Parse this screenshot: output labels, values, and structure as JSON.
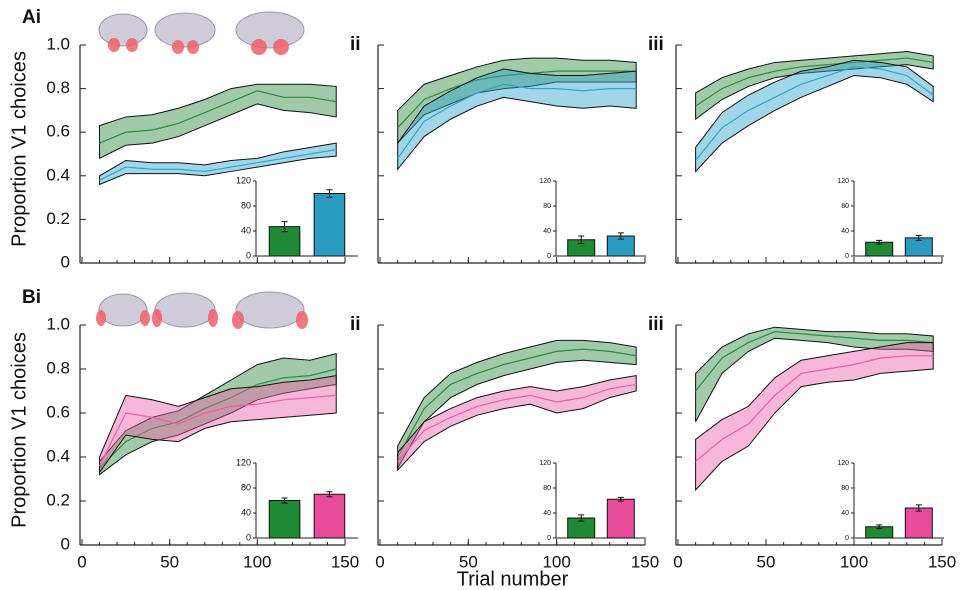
{
  "chart_data": [
    {
      "type": "line",
      "label": "Ai",
      "ylabel": "Proportion V1 choices",
      "xlim": [
        0,
        150
      ],
      "xticks": [
        0,
        50,
        100,
        150
      ],
      "xtick_labels": false,
      "ylim": [
        0,
        1
      ],
      "yticks": [
        0,
        0.2,
        0.4,
        0.6,
        0.8,
        {
          "value": 1,
          "label": "1.0"
        }
      ],
      "ytick_labels": true,
      "x": [
        10,
        25,
        40,
        55,
        70,
        85,
        100,
        115,
        130,
        145
      ],
      "series": [
        {
          "color": "#2d8a3f",
          "values": [
            0.55,
            0.6,
            0.61,
            0.64,
            0.69,
            0.74,
            0.79,
            0.76,
            0.76,
            0.74
          ],
          "lower": [
            0.48,
            0.54,
            0.55,
            0.58,
            0.63,
            0.68,
            0.73,
            0.7,
            0.69,
            0.67
          ],
          "upper": [
            0.63,
            0.67,
            0.68,
            0.71,
            0.75,
            0.8,
            0.82,
            0.82,
            0.82,
            0.81
          ]
        },
        {
          "color": "#2fa4cf",
          "values": [
            0.38,
            0.44,
            0.43,
            0.43,
            0.42,
            0.44,
            0.46,
            0.48,
            0.5,
            0.52
          ],
          "lower": [
            0.36,
            0.41,
            0.41,
            0.41,
            0.4,
            0.42,
            0.44,
            0.46,
            0.48,
            0.49
          ],
          "upper": [
            0.4,
            0.47,
            0.46,
            0.46,
            0.45,
            0.47,
            0.48,
            0.51,
            0.53,
            0.55
          ]
        }
      ],
      "inset": {
        "type": "bar",
        "categories": [
          null,
          null
        ],
        "values": [
          47,
          100
        ],
        "errors": [
          8,
          6
        ],
        "colors": [
          "#1f8a35",
          "#2a9cc2"
        ],
        "ylim": [
          0,
          120
        ],
        "yticks": [
          0,
          40,
          80,
          120
        ]
      }
    },
    {
      "type": "line",
      "label": "ii",
      "xlim": [
        0,
        150
      ],
      "xticks": [
        0,
        50,
        100,
        150
      ],
      "xtick_labels": false,
      "ylim": [
        0,
        1
      ],
      "yticks": [
        0,
        0.2,
        0.4,
        0.6,
        0.8,
        {
          "value": 1,
          "label": "1.0"
        }
      ],
      "ytick_labels": false,
      "x": [
        10,
        25,
        40,
        55,
        70,
        85,
        100,
        115,
        130,
        145
      ],
      "series": [
        {
          "color": "#2d8a3f",
          "values": [
            0.62,
            0.75,
            0.8,
            0.84,
            0.86,
            0.87,
            0.88,
            0.88,
            0.88,
            0.88
          ],
          "lower": [
            0.55,
            0.68,
            0.73,
            0.78,
            0.8,
            0.81,
            0.83,
            0.83,
            0.83,
            0.83
          ],
          "upper": [
            0.7,
            0.82,
            0.86,
            0.9,
            0.93,
            0.94,
            0.94,
            0.93,
            0.93,
            0.92
          ]
        },
        {
          "color": "#2fa4cf",
          "values": [
            0.48,
            0.65,
            0.72,
            0.78,
            0.82,
            0.8,
            0.8,
            0.79,
            0.8,
            0.8
          ],
          "lower": [
            0.43,
            0.58,
            0.66,
            0.72,
            0.76,
            0.74,
            0.72,
            0.71,
            0.72,
            0.71
          ],
          "upper": [
            0.55,
            0.72,
            0.79,
            0.85,
            0.89,
            0.87,
            0.86,
            0.86,
            0.87,
            0.88
          ]
        }
      ],
      "inset": {
        "type": "bar",
        "categories": [
          null,
          null
        ],
        "values": [
          26,
          32
        ],
        "errors": [
          6,
          5
        ],
        "colors": [
          "#1f8a35",
          "#2a9cc2"
        ],
        "ylim": [
          0,
          120
        ],
        "yticks": [
          0,
          40,
          80,
          120
        ]
      }
    },
    {
      "type": "line",
      "label": "iii",
      "xlim": [
        0,
        150
      ],
      "xticks": [
        0,
        50,
        100,
        150
      ],
      "xtick_labels": false,
      "ylim": [
        0,
        1
      ],
      "yticks": [
        0,
        0.2,
        0.4,
        0.6,
        0.8,
        {
          "value": 1,
          "label": "1.0"
        }
      ],
      "ytick_labels": false,
      "x": [
        10,
        25,
        40,
        55,
        70,
        85,
        100,
        115,
        130,
        145
      ],
      "series": [
        {
          "color": "#2d8a3f",
          "values": [
            0.72,
            0.8,
            0.85,
            0.88,
            0.9,
            0.91,
            0.92,
            0.93,
            0.94,
            0.92
          ],
          "lower": [
            0.66,
            0.75,
            0.81,
            0.85,
            0.87,
            0.88,
            0.89,
            0.9,
            0.91,
            0.89
          ],
          "upper": [
            0.78,
            0.85,
            0.89,
            0.92,
            0.93,
            0.94,
            0.95,
            0.96,
            0.97,
            0.95
          ]
        },
        {
          "color": "#2fa4cf",
          "values": [
            0.47,
            0.62,
            0.7,
            0.76,
            0.82,
            0.86,
            0.9,
            0.89,
            0.86,
            0.77
          ],
          "lower": [
            0.42,
            0.55,
            0.63,
            0.7,
            0.76,
            0.81,
            0.86,
            0.85,
            0.82,
            0.74
          ],
          "upper": [
            0.53,
            0.69,
            0.77,
            0.83,
            0.88,
            0.9,
            0.93,
            0.92,
            0.9,
            0.81
          ]
        }
      ],
      "inset": {
        "type": "bar",
        "categories": [
          null,
          null
        ],
        "values": [
          22,
          29
        ],
        "errors": [
          3,
          4
        ],
        "colors": [
          "#1f8a35",
          "#2a9cc2"
        ],
        "ylim": [
          0,
          120
        ],
        "yticks": [
          0,
          40,
          80,
          120
        ]
      }
    },
    {
      "type": "line",
      "label": "Bi",
      "ylabel": "Proportion V1 choices",
      "xlim": [
        0,
        150
      ],
      "xticks": [
        0,
        50,
        100,
        150
      ],
      "xtick_labels": true,
      "ylim": [
        0,
        1
      ],
      "yticks": [
        0,
        0.2,
        0.4,
        0.6,
        0.8,
        {
          "value": 1,
          "label": "1.0"
        }
      ],
      "ytick_labels": true,
      "x": [
        10,
        25,
        40,
        55,
        70,
        85,
        100,
        115,
        130,
        145
      ],
      "series": [
        {
          "color": "#2d8a3f",
          "values": [
            0.35,
            0.47,
            0.53,
            0.56,
            0.62,
            0.67,
            0.73,
            0.76,
            0.77,
            0.8
          ],
          "lower": [
            0.32,
            0.41,
            0.47,
            0.5,
            0.55,
            0.6,
            0.66,
            0.69,
            0.71,
            0.73
          ],
          "upper": [
            0.38,
            0.52,
            0.58,
            0.61,
            0.68,
            0.75,
            0.82,
            0.85,
            0.84,
            0.87
          ]
        },
        {
          "color": "#ec5fa8",
          "values": [
            0.36,
            0.6,
            0.58,
            0.55,
            0.6,
            0.63,
            0.64,
            0.66,
            0.67,
            0.68
          ],
          "lower": [
            0.33,
            0.5,
            0.48,
            0.47,
            0.53,
            0.56,
            0.57,
            0.58,
            0.59,
            0.6
          ],
          "upper": [
            0.4,
            0.68,
            0.66,
            0.63,
            0.67,
            0.71,
            0.72,
            0.74,
            0.75,
            0.77
          ]
        }
      ],
      "inset": {
        "type": "bar",
        "categories": [
          null,
          null
        ],
        "values": [
          60,
          70
        ],
        "errors": [
          4,
          4
        ],
        "colors": [
          "#1f8a35",
          "#e94b9b"
        ],
        "ylim": [
          0,
          120
        ],
        "yticks": [
          0,
          40,
          80,
          120
        ]
      }
    },
    {
      "type": "line",
      "label": "ii",
      "xlabel": "Trial number",
      "xlim": [
        0,
        150
      ],
      "xticks": [
        0,
        50,
        100,
        150
      ],
      "xtick_labels": true,
      "ylim": [
        0,
        1
      ],
      "yticks": [
        0,
        0.2,
        0.4,
        0.6,
        0.8,
        {
          "value": 1,
          "label": "1.0"
        }
      ],
      "ytick_labels": false,
      "x": [
        10,
        25,
        40,
        55,
        70,
        85,
        100,
        115,
        130,
        145
      ],
      "series": [
        {
          "color": "#2d8a3f",
          "values": [
            0.4,
            0.62,
            0.73,
            0.78,
            0.82,
            0.85,
            0.88,
            0.89,
            0.88,
            0.86
          ],
          "lower": [
            0.35,
            0.56,
            0.67,
            0.73,
            0.77,
            0.8,
            0.83,
            0.84,
            0.83,
            0.82
          ],
          "upper": [
            0.45,
            0.67,
            0.78,
            0.83,
            0.87,
            0.9,
            0.93,
            0.93,
            0.92,
            0.9
          ]
        },
        {
          "color": "#ec5fa8",
          "values": [
            0.38,
            0.52,
            0.58,
            0.63,
            0.66,
            0.68,
            0.65,
            0.67,
            0.71,
            0.73
          ],
          "lower": [
            0.34,
            0.47,
            0.54,
            0.59,
            0.62,
            0.64,
            0.6,
            0.62,
            0.67,
            0.7
          ],
          "upper": [
            0.42,
            0.56,
            0.62,
            0.67,
            0.7,
            0.72,
            0.7,
            0.72,
            0.75,
            0.77
          ]
        }
      ],
      "inset": {
        "type": "bar",
        "categories": [
          null,
          null
        ],
        "values": [
          32,
          62
        ],
        "errors": [
          5,
          3
        ],
        "colors": [
          "#1f8a35",
          "#e94b9b"
        ],
        "ylim": [
          0,
          120
        ],
        "yticks": [
          0,
          40,
          80,
          120
        ]
      }
    },
    {
      "type": "line",
      "label": "iii",
      "xlim": [
        0,
        150
      ],
      "xticks": [
        0,
        50,
        100,
        150
      ],
      "xtick_labels": true,
      "ylim": [
        0,
        1
      ],
      "yticks": [
        0,
        0.2,
        0.4,
        0.6,
        0.8,
        {
          "value": 1,
          "label": "1.0"
        }
      ],
      "ytick_labels": false,
      "x": [
        10,
        25,
        40,
        55,
        70,
        85,
        100,
        115,
        130,
        145
      ],
      "series": [
        {
          "color": "#2d8a3f",
          "values": [
            0.7,
            0.85,
            0.92,
            0.97,
            0.96,
            0.95,
            0.94,
            0.93,
            0.93,
            0.92
          ],
          "lower": [
            0.56,
            0.78,
            0.88,
            0.94,
            0.93,
            0.92,
            0.9,
            0.89,
            0.89,
            0.88
          ],
          "upper": [
            0.78,
            0.9,
            0.96,
            0.99,
            0.98,
            0.97,
            0.97,
            0.96,
            0.96,
            0.95
          ]
        },
        {
          "color": "#ec5fa8",
          "values": [
            0.38,
            0.48,
            0.55,
            0.68,
            0.78,
            0.8,
            0.82,
            0.85,
            0.86,
            0.86
          ],
          "lower": [
            0.25,
            0.38,
            0.45,
            0.6,
            0.72,
            0.74,
            0.75,
            0.78,
            0.79,
            0.8
          ],
          "upper": [
            0.48,
            0.57,
            0.63,
            0.76,
            0.84,
            0.86,
            0.88,
            0.9,
            0.92,
            0.92
          ]
        }
      ],
      "inset": {
        "type": "bar",
        "categories": [
          null,
          null
        ],
        "values": [
          18,
          48
        ],
        "errors": [
          3,
          5
        ],
        "colors": [
          "#1f8a35",
          "#e94b9b"
        ],
        "ylim": [
          0,
          120
        ],
        "yticks": [
          0,
          40,
          80,
          120
        ]
      }
    }
  ]
}
